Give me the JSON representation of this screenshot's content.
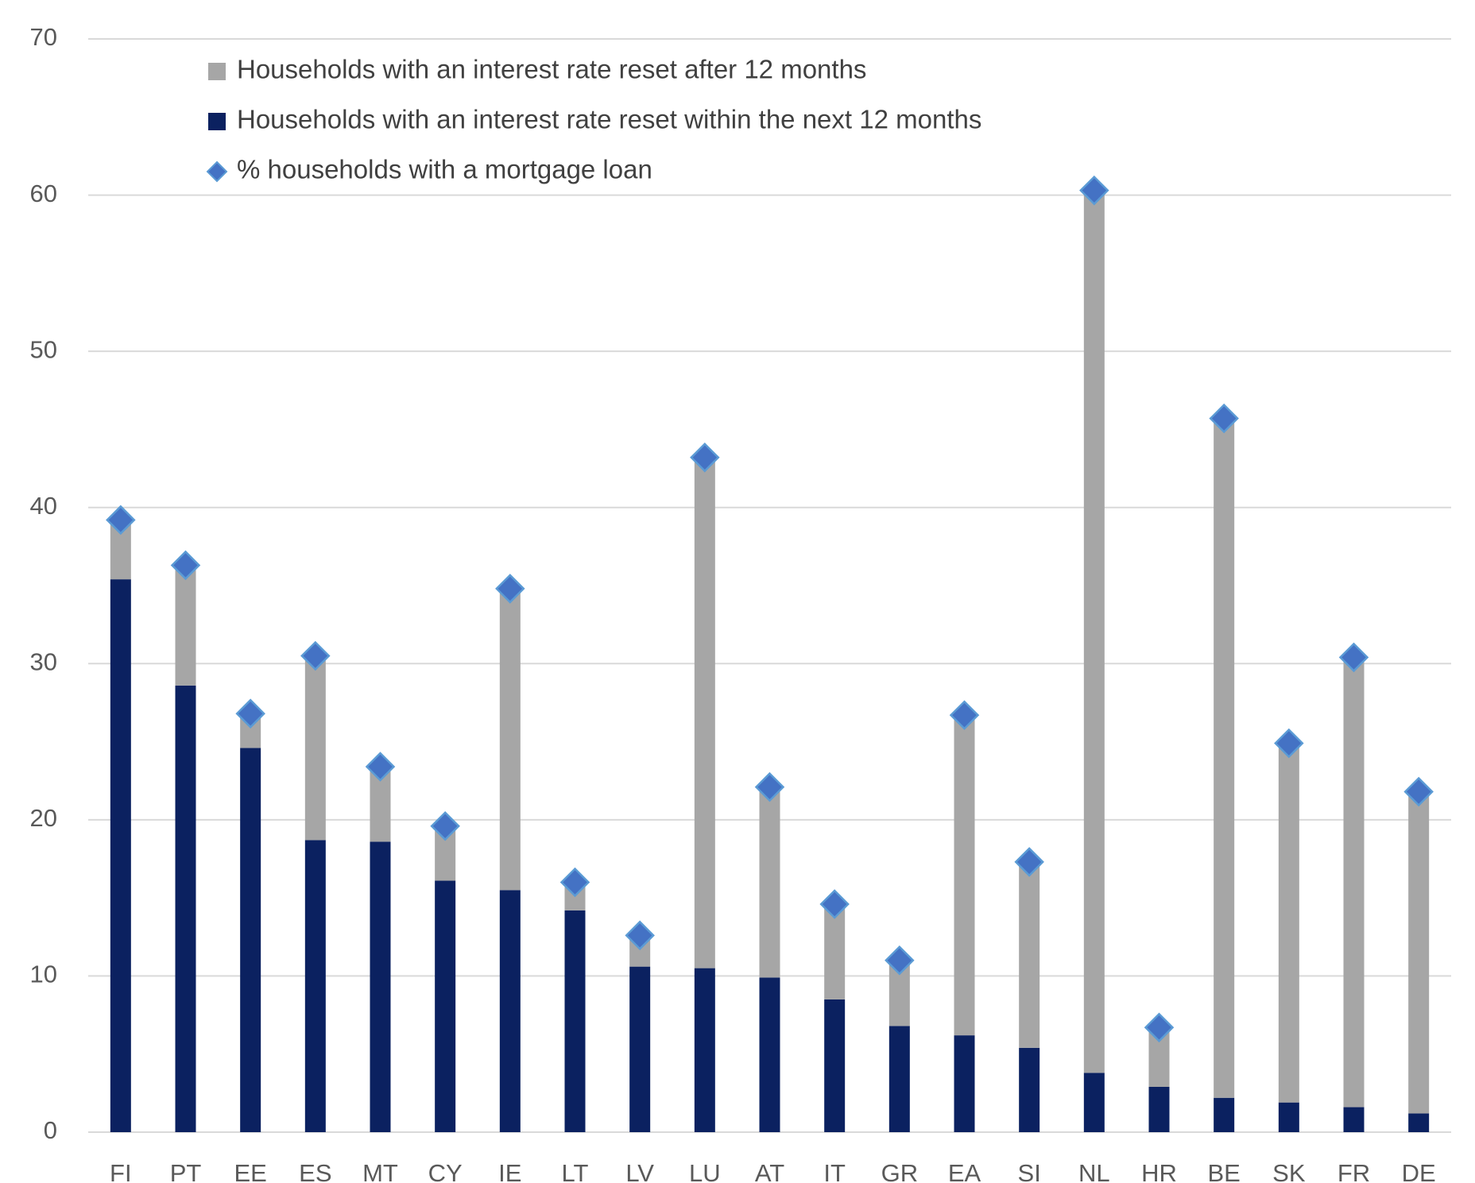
{
  "chart_data": {
    "type": "stacked-bar-marker",
    "categories": [
      "FI",
      "PT",
      "EE",
      "ES",
      "MT",
      "CY",
      "IE",
      "LT",
      "LV",
      "LU",
      "AT",
      "IT",
      "GR",
      "EA",
      "SI",
      "NL",
      "HR",
      "BE",
      "SK",
      "FR",
      "DE"
    ],
    "series": [
      {
        "name": "Households with an interest rate reset within the next 12 months",
        "color": "#0b2160",
        "kind": "bar",
        "values": [
          35.4,
          28.6,
          24.6,
          18.7,
          18.6,
          16.1,
          15.5,
          14.2,
          10.6,
          10.5,
          9.9,
          8.5,
          6.8,
          6.2,
          5.4,
          3.8,
          2.9,
          2.2,
          1.9,
          1.6,
          1.2
        ]
      },
      {
        "name": "Households with an interest rate reset after 12 months",
        "color": "#a6a6a6",
        "kind": "bar",
        "values": [
          3.8,
          7.7,
          2.2,
          11.8,
          4.8,
          3.5,
          19.3,
          1.8,
          2.0,
          32.7,
          12.2,
          6.1,
          4.2,
          20.5,
          11.9,
          56.5,
          3.8,
          43.5,
          23.0,
          28.8,
          20.6
        ]
      },
      {
        "name": "% households with a mortgage loan",
        "color": "#4472c4",
        "kind": "marker",
        "values": [
          39.2,
          36.3,
          26.8,
          30.5,
          23.4,
          19.6,
          34.8,
          16.0,
          12.6,
          43.2,
          22.1,
          14.6,
          11.0,
          26.7,
          17.3,
          60.3,
          6.7,
          45.7,
          24.9,
          30.4,
          21.8
        ]
      }
    ],
    "legend_order": [
      1,
      0,
      2
    ],
    "ylim": [
      0,
      70
    ],
    "yticks": [
      0,
      10,
      20,
      30,
      40,
      50,
      60,
      70
    ],
    "grid": true,
    "legend": "upper left"
  }
}
